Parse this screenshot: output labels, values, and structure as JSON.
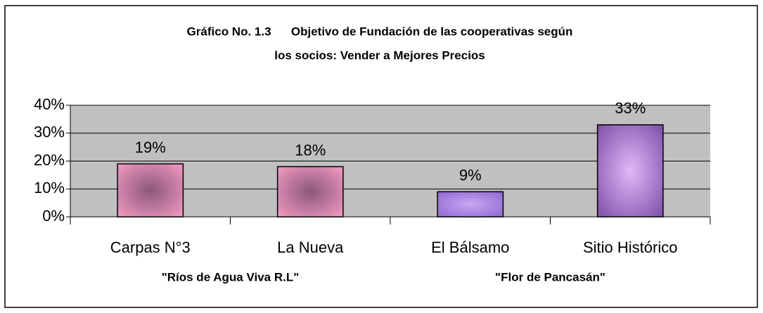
{
  "chart_data": {
    "type": "bar",
    "title": [
      "Gráfico No. 1.3      Objetivo de Fundación de las cooperativas según",
      "los socios: Vender a Mejores Precios"
    ],
    "categories": [
      "Carpas N°3",
      "La Nueva",
      "El Bálsamo",
      "Sitio Histórico"
    ],
    "values": [
      19,
      18,
      9,
      33
    ],
    "value_labels": [
      "19%",
      "18%",
      "9%",
      "33%"
    ],
    "colors": [
      "#f49ac4",
      "#f49ac4",
      "#8c68d0",
      "#7e4fa8"
    ],
    "center_colors": [
      "#8a5878",
      "#8a5878",
      "#c8a8f4",
      "#e0b8f8"
    ],
    "group_labels": [
      "\"Ríos de Agua Viva R.L\"",
      "\"Flor de Pancasán\""
    ],
    "ylim": [
      0,
      40
    ],
    "yticks": [
      {
        "value": 0,
        "label": "0%"
      },
      {
        "value": 10,
        "label": "10%"
      },
      {
        "value": 20,
        "label": "20%"
      },
      {
        "value": 30,
        "label": "30%"
      },
      {
        "value": 40,
        "label": "40%"
      }
    ],
    "grid": true
  }
}
